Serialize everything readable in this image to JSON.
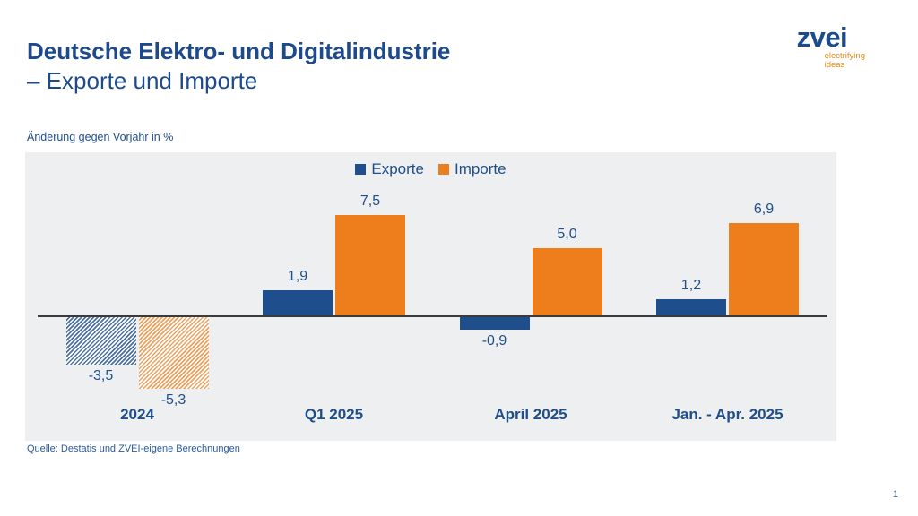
{
  "header": {
    "title_line1": "Deutsche Elektro- und Digitalindustrie",
    "title_line2": "– Exporte und Importe",
    "logo_text": "zvei",
    "logo_tagline_line1": "electrifying",
    "logo_tagline_line2": "ideas"
  },
  "chart_caption": "Änderung gegen Vorjahr in %",
  "chart_data": {
    "type": "bar",
    "title": "Deutsche Elektro- und Digitalindustrie – Exporte und Importe",
    "unit_note": "Änderung gegen Vorjahr in %",
    "categories": [
      "2024",
      "Q1 2025",
      "April 2025",
      "Jan. - Apr. 2025"
    ],
    "series": [
      {
        "name": "Exporte",
        "color": "#1F4E8C",
        "values": [
          -3.5,
          1.9,
          -0.9,
          1.2
        ],
        "labels": [
          "-3,5",
          "1,9",
          "-0,9",
          "1,2"
        ]
      },
      {
        "name": "Importe",
        "color": "#EE7D1B",
        "values": [
          -5.3,
          7.5,
          5.0,
          6.9
        ],
        "labels": [
          "-5,3",
          "7,5",
          "5,0",
          "6,9"
        ]
      }
    ],
    "hatched_categories": [
      "2024"
    ],
    "baseline": 0,
    "ylim": [
      -6,
      9
    ],
    "grid": false,
    "legend_position": "top-center"
  },
  "footer": {
    "source": "Quelle: Destatis und ZVEI-eigene Berechnungen",
    "page_number": "1"
  },
  "colors": {
    "export_blue": "#1F4E8C",
    "import_orange": "#EE7D1B",
    "title_blue": "#1C4A8C",
    "plot_background": "#EDEFF0",
    "tagline_orange": "#E98B0C"
  }
}
